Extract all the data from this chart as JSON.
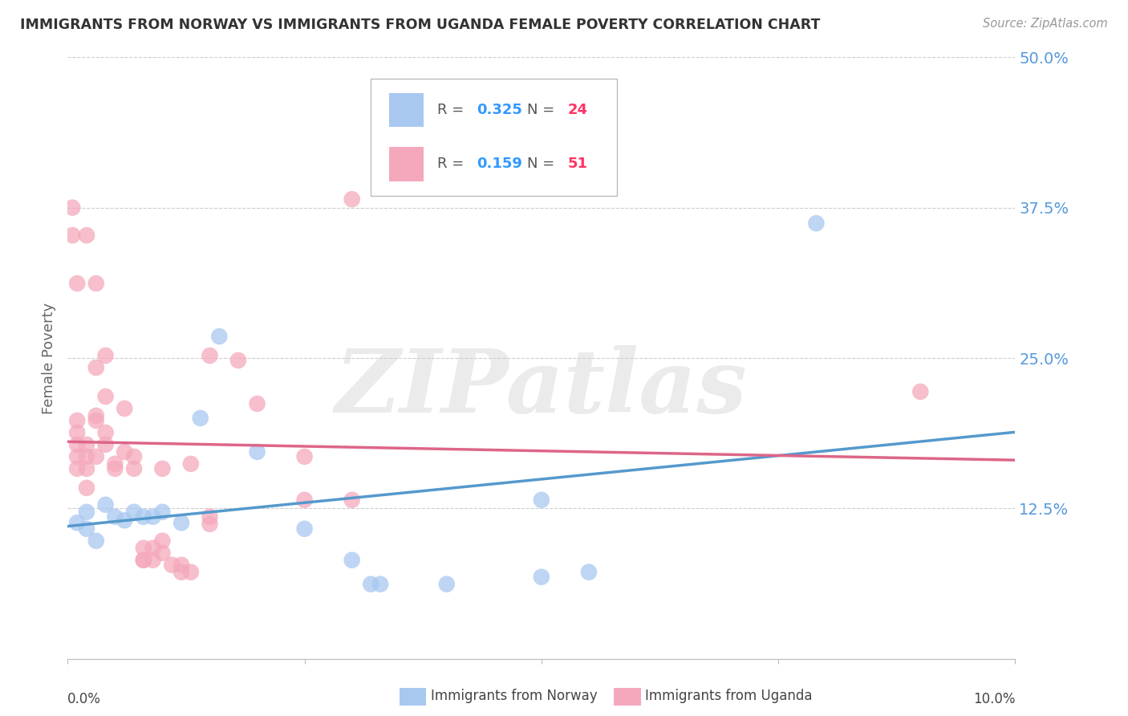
{
  "title": "IMMIGRANTS FROM NORWAY VS IMMIGRANTS FROM UGANDA FEMALE POVERTY CORRELATION CHART",
  "source": "Source: ZipAtlas.com",
  "ylabel": "Female Poverty",
  "yticks": [
    0.0,
    0.125,
    0.25,
    0.375,
    0.5
  ],
  "ytick_labels": [
    "",
    "12.5%",
    "25.0%",
    "37.5%",
    "50.0%"
  ],
  "xlim": [
    0.0,
    0.1
  ],
  "ylim": [
    0.0,
    0.5
  ],
  "norway_color": "#a8c8f0",
  "uganda_color": "#f5a8bc",
  "norway_label": "Immigrants from Norway",
  "uganda_label": "Immigrants from Uganda",
  "norway_R": "0.325",
  "norway_N": "24",
  "uganda_R": "0.159",
  "uganda_N": "51",
  "R_color": "#3399ff",
  "N_color": "#ff3366",
  "norway_line_color": "#5599cc",
  "uganda_line_color": "#dd6688",
  "watermark_text": "ZIPatlas",
  "norway_scatter": [
    [
      0.001,
      0.113
    ],
    [
      0.002,
      0.108
    ],
    [
      0.002,
      0.122
    ],
    [
      0.003,
      0.098
    ],
    [
      0.004,
      0.128
    ],
    [
      0.005,
      0.118
    ],
    [
      0.006,
      0.115
    ],
    [
      0.007,
      0.122
    ],
    [
      0.008,
      0.118
    ],
    [
      0.009,
      0.118
    ],
    [
      0.01,
      0.122
    ],
    [
      0.012,
      0.113
    ],
    [
      0.014,
      0.2
    ],
    [
      0.016,
      0.268
    ],
    [
      0.02,
      0.172
    ],
    [
      0.025,
      0.108
    ],
    [
      0.03,
      0.082
    ],
    [
      0.032,
      0.062
    ],
    [
      0.033,
      0.062
    ],
    [
      0.04,
      0.062
    ],
    [
      0.05,
      0.132
    ],
    [
      0.05,
      0.068
    ],
    [
      0.055,
      0.072
    ],
    [
      0.079,
      0.362
    ]
  ],
  "uganda_scatter": [
    [
      0.0005,
      0.375
    ],
    [
      0.0005,
      0.352
    ],
    [
      0.001,
      0.158
    ],
    [
      0.001,
      0.168
    ],
    [
      0.001,
      0.178
    ],
    [
      0.001,
      0.188
    ],
    [
      0.001,
      0.198
    ],
    [
      0.001,
      0.312
    ],
    [
      0.002,
      0.168
    ],
    [
      0.002,
      0.178
    ],
    [
      0.002,
      0.158
    ],
    [
      0.002,
      0.142
    ],
    [
      0.002,
      0.352
    ],
    [
      0.003,
      0.202
    ],
    [
      0.003,
      0.198
    ],
    [
      0.003,
      0.242
    ],
    [
      0.003,
      0.168
    ],
    [
      0.003,
      0.312
    ],
    [
      0.004,
      0.188
    ],
    [
      0.004,
      0.218
    ],
    [
      0.004,
      0.178
    ],
    [
      0.004,
      0.252
    ],
    [
      0.005,
      0.162
    ],
    [
      0.005,
      0.158
    ],
    [
      0.006,
      0.172
    ],
    [
      0.006,
      0.208
    ],
    [
      0.007,
      0.168
    ],
    [
      0.007,
      0.158
    ],
    [
      0.008,
      0.082
    ],
    [
      0.008,
      0.092
    ],
    [
      0.008,
      0.082
    ],
    [
      0.009,
      0.082
    ],
    [
      0.009,
      0.092
    ],
    [
      0.01,
      0.158
    ],
    [
      0.01,
      0.098
    ],
    [
      0.01,
      0.088
    ],
    [
      0.011,
      0.078
    ],
    [
      0.012,
      0.072
    ],
    [
      0.012,
      0.078
    ],
    [
      0.013,
      0.072
    ],
    [
      0.013,
      0.162
    ],
    [
      0.015,
      0.118
    ],
    [
      0.015,
      0.112
    ],
    [
      0.015,
      0.252
    ],
    [
      0.018,
      0.248
    ],
    [
      0.02,
      0.212
    ],
    [
      0.025,
      0.168
    ],
    [
      0.025,
      0.132
    ],
    [
      0.03,
      0.382
    ],
    [
      0.03,
      0.132
    ],
    [
      0.09,
      0.222
    ]
  ]
}
